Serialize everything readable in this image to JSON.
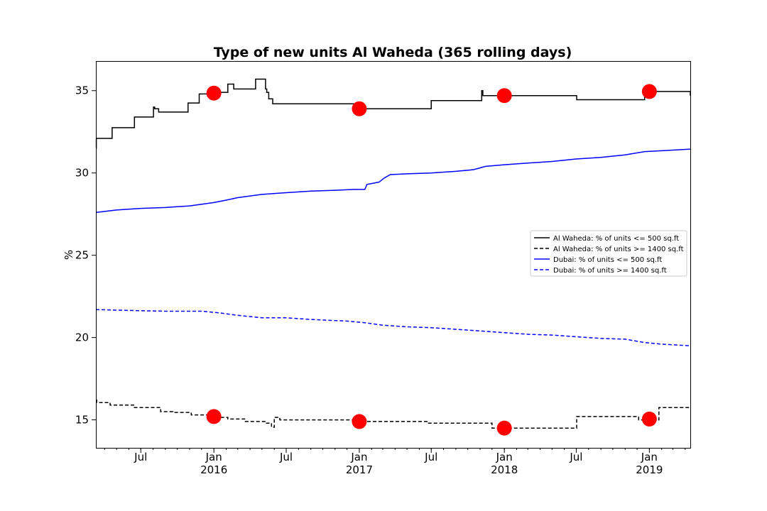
{
  "chart_data": {
    "type": "line",
    "title": "Type of new units Al Waheda (365 rolling days)",
    "xlabel": "",
    "ylabel": "%",
    "xlim": [
      "2015-03-10",
      "2019-04-14"
    ],
    "ylim": [
      13.3,
      36.8
    ],
    "y_ticks": [
      15,
      20,
      25,
      30,
      35
    ],
    "x_ticks": [
      {
        "date": "2015-07-01",
        "label": "Jul",
        "year": ""
      },
      {
        "date": "2016-01-01",
        "label": "Jan",
        "year": "2016"
      },
      {
        "date": "2016-07-01",
        "label": "Jul",
        "year": ""
      },
      {
        "date": "2017-01-01",
        "label": "Jan",
        "year": "2017"
      },
      {
        "date": "2017-07-01",
        "label": "Jul",
        "year": ""
      },
      {
        "date": "2018-01-01",
        "label": "Jan",
        "year": "2018"
      },
      {
        "date": "2018-07-01",
        "label": "Jul",
        "year": ""
      },
      {
        "date": "2019-01-01",
        "label": "Jan",
        "year": "2019"
      }
    ],
    "grid": false,
    "legend_position": "right",
    "series": [
      {
        "name": "Al Waheda: % of units <= 500 sq.ft",
        "color": "#000000",
        "style": "solid",
        "step": true,
        "x": [
          "2015-03-10",
          "2015-03-11",
          "2015-03-18",
          "2015-04-20",
          "2015-06-15",
          "2015-08-02",
          "2015-08-05",
          "2015-08-15",
          "2015-09-15",
          "2015-10-28",
          "2015-11-05",
          "2015-11-25",
          "2016-01-05",
          "2016-02-05",
          "2016-02-20",
          "2016-04-15",
          "2016-05-10",
          "2016-05-13",
          "2016-05-18",
          "2016-05-28",
          "2016-06-05",
          "2016-10-25",
          "2017-01-01",
          "2017-07-01",
          "2017-11-05",
          "2017-11-08",
          "2018-07-02",
          "2018-10-25",
          "2018-12-20",
          "2019-04-14"
        ],
        "values": [
          31.5,
          32.1,
          32.1,
          32.75,
          33.4,
          34.0,
          33.9,
          33.7,
          33.7,
          34.25,
          34.25,
          34.8,
          34.9,
          35.4,
          35.1,
          35.7,
          35.1,
          34.9,
          34.5,
          34.2,
          34.2,
          34.2,
          33.9,
          34.4,
          35.0,
          34.7,
          34.45,
          34.45,
          34.95,
          34.7
        ]
      },
      {
        "name": "Al Waheda: % of units >= 1400 sq.ft",
        "color": "#000000",
        "style": "dashed",
        "step": true,
        "x": [
          "2015-03-10",
          "2015-03-12",
          "2015-04-15",
          "2015-06-15",
          "2015-08-20",
          "2015-09-20",
          "2015-11-05",
          "2016-01-01",
          "2016-02-05",
          "2016-03-20",
          "2016-05-10",
          "2016-05-25",
          "2016-06-01",
          "2016-06-15",
          "2016-10-15",
          "2017-01-01",
          "2017-06-20",
          "2017-11-15",
          "2017-12-01",
          "2018-04-01",
          "2018-07-02",
          "2018-10-01",
          "2018-12-05",
          "2018-12-20",
          "2019-01-25",
          "2019-04-14"
        ],
        "values": [
          16.2,
          16.05,
          15.9,
          15.75,
          15.5,
          15.45,
          15.3,
          15.15,
          15.05,
          14.9,
          14.8,
          14.55,
          15.15,
          15.0,
          15.0,
          14.9,
          14.8,
          14.8,
          14.5,
          14.5,
          15.2,
          15.2,
          15.0,
          15.0,
          15.75,
          15.75
        ]
      },
      {
        "name": "Dubai: % of units <= 500 sq.ft",
        "color": "#0000ff",
        "style": "solid",
        "step": false,
        "x": [
          "2015-03-10",
          "2015-05-01",
          "2015-07-01",
          "2015-09-01",
          "2015-11-01",
          "2016-01-01",
          "2016-02-01",
          "2016-03-01",
          "2016-05-01",
          "2016-07-01",
          "2016-09-01",
          "2016-11-01",
          "2016-12-20",
          "2017-01-15",
          "2017-01-20",
          "2017-02-20",
          "2017-03-05",
          "2017-03-20",
          "2017-05-01",
          "2017-07-01",
          "2017-09-01",
          "2017-10-15",
          "2017-11-15",
          "2018-01-01",
          "2018-03-01",
          "2018-05-01",
          "2018-07-01",
          "2018-09-01",
          "2018-11-01",
          "2018-12-20",
          "2019-02-01",
          "2019-04-14"
        ],
        "values": [
          27.6,
          27.75,
          27.85,
          27.9,
          28.0,
          28.2,
          28.35,
          28.5,
          28.7,
          28.8,
          28.9,
          28.95,
          29.0,
          29.0,
          29.3,
          29.45,
          29.7,
          29.9,
          29.95,
          30.0,
          30.1,
          30.2,
          30.4,
          30.5,
          30.6,
          30.7,
          30.85,
          30.95,
          31.1,
          31.3,
          31.35,
          31.45
        ]
      },
      {
        "name": "Dubai: % of units >= 1400 sq.ft",
        "color": "#0000ff",
        "style": "dashed",
        "step": false,
        "x": [
          "2015-03-10",
          "2015-06-01",
          "2015-09-01",
          "2015-12-01",
          "2016-01-15",
          "2016-03-01",
          "2016-05-01",
          "2016-07-01",
          "2016-09-01",
          "2016-12-01",
          "2017-01-15",
          "2017-03-01",
          "2017-05-01",
          "2017-07-01",
          "2017-09-01",
          "2017-11-01",
          "2018-01-01",
          "2018-03-01",
          "2018-05-01",
          "2018-07-01",
          "2018-09-01",
          "2018-11-01",
          "2018-12-20",
          "2019-02-01",
          "2019-04-14"
        ],
        "values": [
          21.7,
          21.65,
          21.6,
          21.6,
          21.5,
          21.35,
          21.2,
          21.2,
          21.1,
          21.0,
          20.9,
          20.75,
          20.65,
          20.6,
          20.5,
          20.4,
          20.3,
          20.2,
          20.15,
          20.05,
          19.95,
          19.9,
          19.7,
          19.6,
          19.5
        ]
      }
    ],
    "markers": [
      {
        "date": "2016-01-01",
        "value": 34.85,
        "color": "#ff0000"
      },
      {
        "date": "2017-01-01",
        "value": 33.9,
        "color": "#ff0000"
      },
      {
        "date": "2018-01-01",
        "value": 34.7,
        "color": "#ff0000"
      },
      {
        "date": "2019-01-01",
        "value": 34.95,
        "color": "#ff0000"
      },
      {
        "date": "2016-01-01",
        "value": 15.2,
        "color": "#ff0000"
      },
      {
        "date": "2017-01-01",
        "value": 14.9,
        "color": "#ff0000"
      },
      {
        "date": "2018-01-01",
        "value": 14.5,
        "color": "#ff0000"
      },
      {
        "date": "2019-01-01",
        "value": 15.05,
        "color": "#ff0000"
      }
    ]
  }
}
